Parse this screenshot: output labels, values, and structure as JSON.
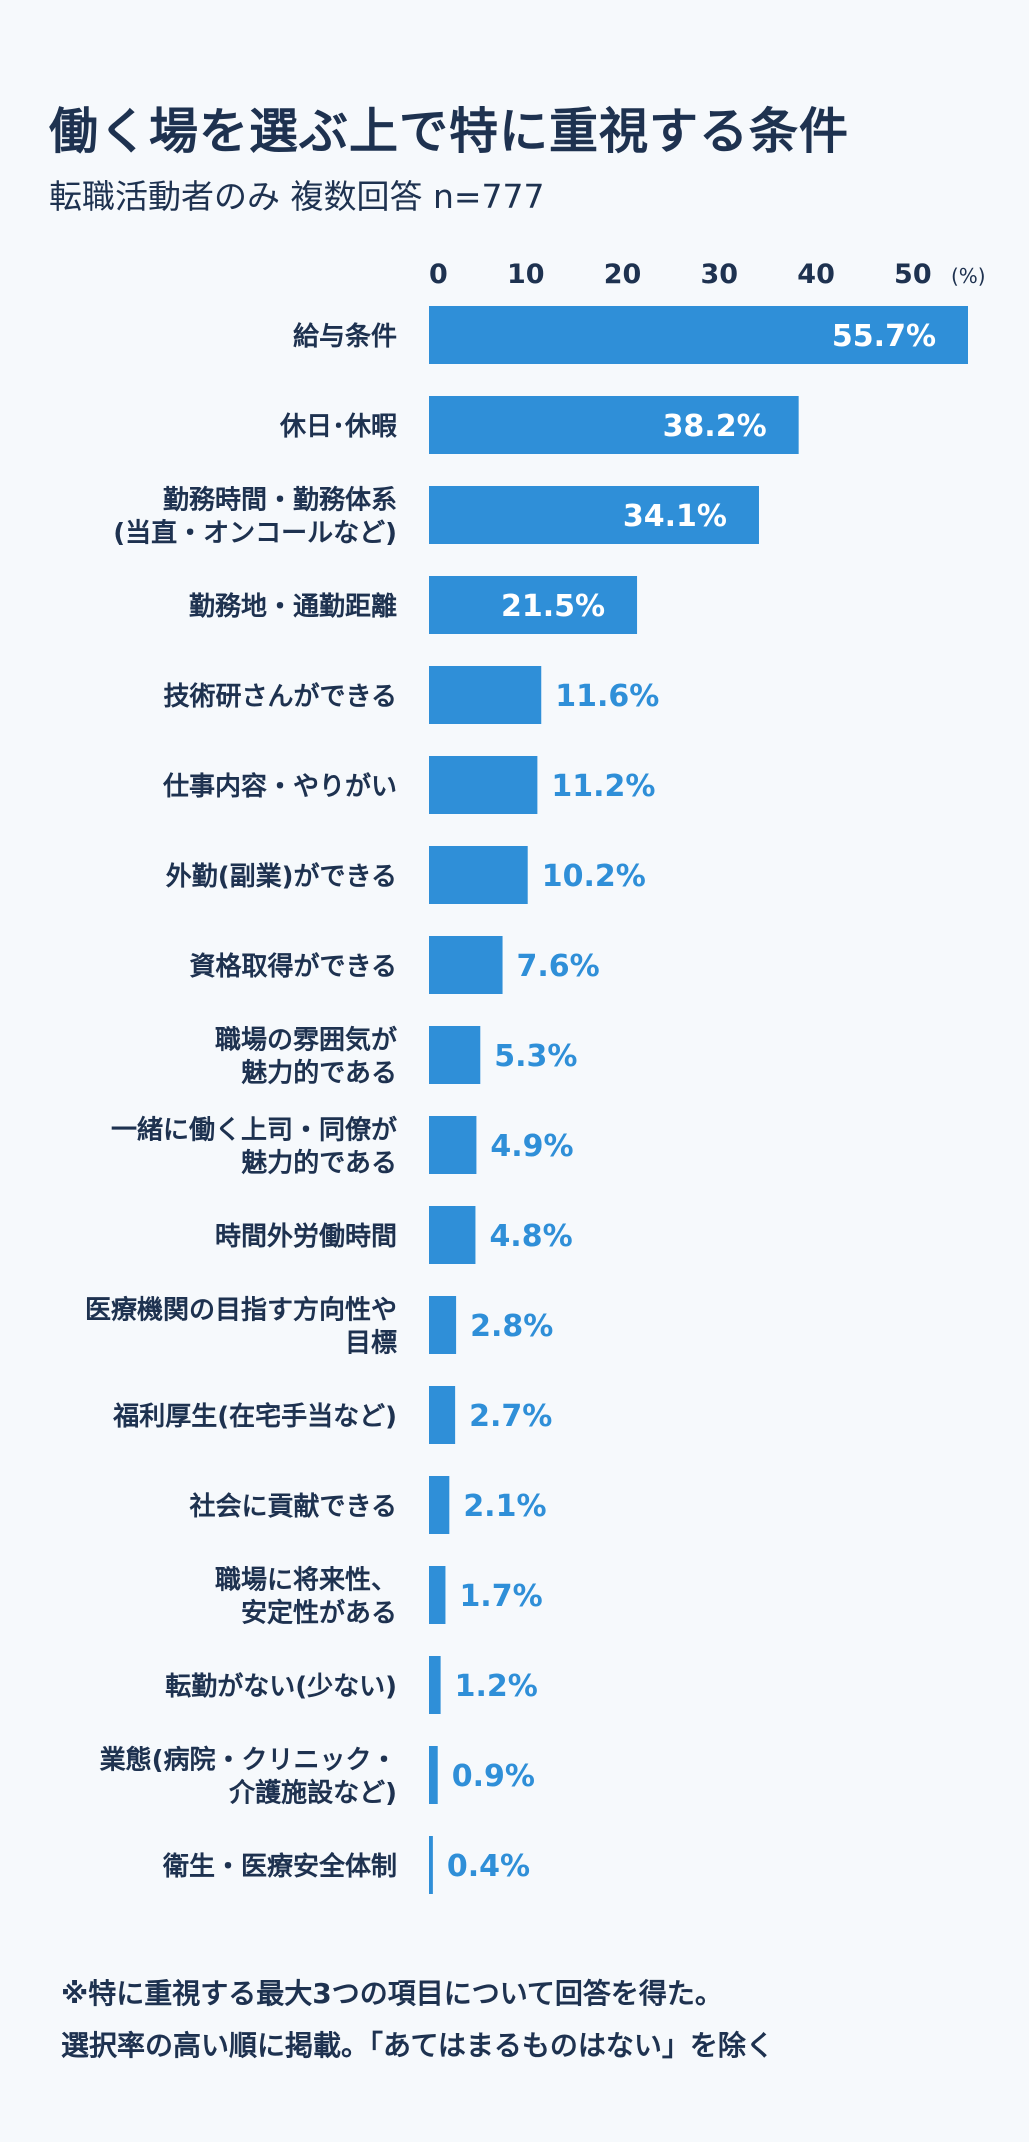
{
  "title": "働く場を選ぶ上で特に重視する条件",
  "subtitle": "転職活動者のみ 複数回答 n=777",
  "notes": [
    "※特に重視する最大3つの項目について回答を得た。",
    "選択率の高い順に掲載。「あてはまるものはない」を除く"
  ],
  "colors": {
    "bar": "#2f8fd8",
    "label_inside": "#ffffff",
    "label_outside": "#2f8fd8",
    "category_text": "#1e3250"
  },
  "chart_data": {
    "type": "bar",
    "orientation": "horizontal",
    "unit_label": "(%)",
    "x_ticks": [
      0,
      10,
      20,
      30,
      40,
      50
    ],
    "xlim": [
      0,
      55.7
    ],
    "grid": false,
    "categories": [
      [
        "給与条件"
      ],
      [
        "休日･休暇"
      ],
      [
        "勤務時間・勤務体系",
        "(当直・オンコールなど)"
      ],
      [
        "勤務地・通勤距離"
      ],
      [
        "技術研さんができる"
      ],
      [
        "仕事内容・やりがい"
      ],
      [
        "外勤(副業)ができる"
      ],
      [
        "資格取得ができる"
      ],
      [
        "職場の雰囲気が",
        "魅力的である"
      ],
      [
        "一緒に働く上司・同僚が",
        "魅力的である"
      ],
      [
        "時間外労働時間"
      ],
      [
        "医療機関の目指す方向性や",
        "目標"
      ],
      [
        "福利厚生(在宅手当など)"
      ],
      [
        "社会に貢献できる"
      ],
      [
        "職場に将来性、",
        "安定性がある"
      ],
      [
        "転勤がない(少ない)"
      ],
      [
        "業態(病院・クリニック・",
        "介護施設など)"
      ],
      [
        "衛生・医療安全体制"
      ]
    ],
    "values": [
      55.7,
      38.2,
      34.1,
      21.5,
      11.6,
      11.2,
      10.2,
      7.6,
      5.3,
      4.9,
      4.8,
      2.8,
      2.7,
      2.1,
      1.7,
      1.2,
      0.9,
      0.4
    ],
    "value_labels": [
      "55.7%",
      "38.2%",
      "34.1%",
      "21.5%",
      "11.6%",
      "11.2%",
      "10.2%",
      "7.6%",
      "5.3%",
      "4.9%",
      "4.8%",
      "2.8%",
      "2.7%",
      "2.1%",
      "1.7%",
      "1.2%",
      "0.9%",
      "0.4%"
    ]
  }
}
